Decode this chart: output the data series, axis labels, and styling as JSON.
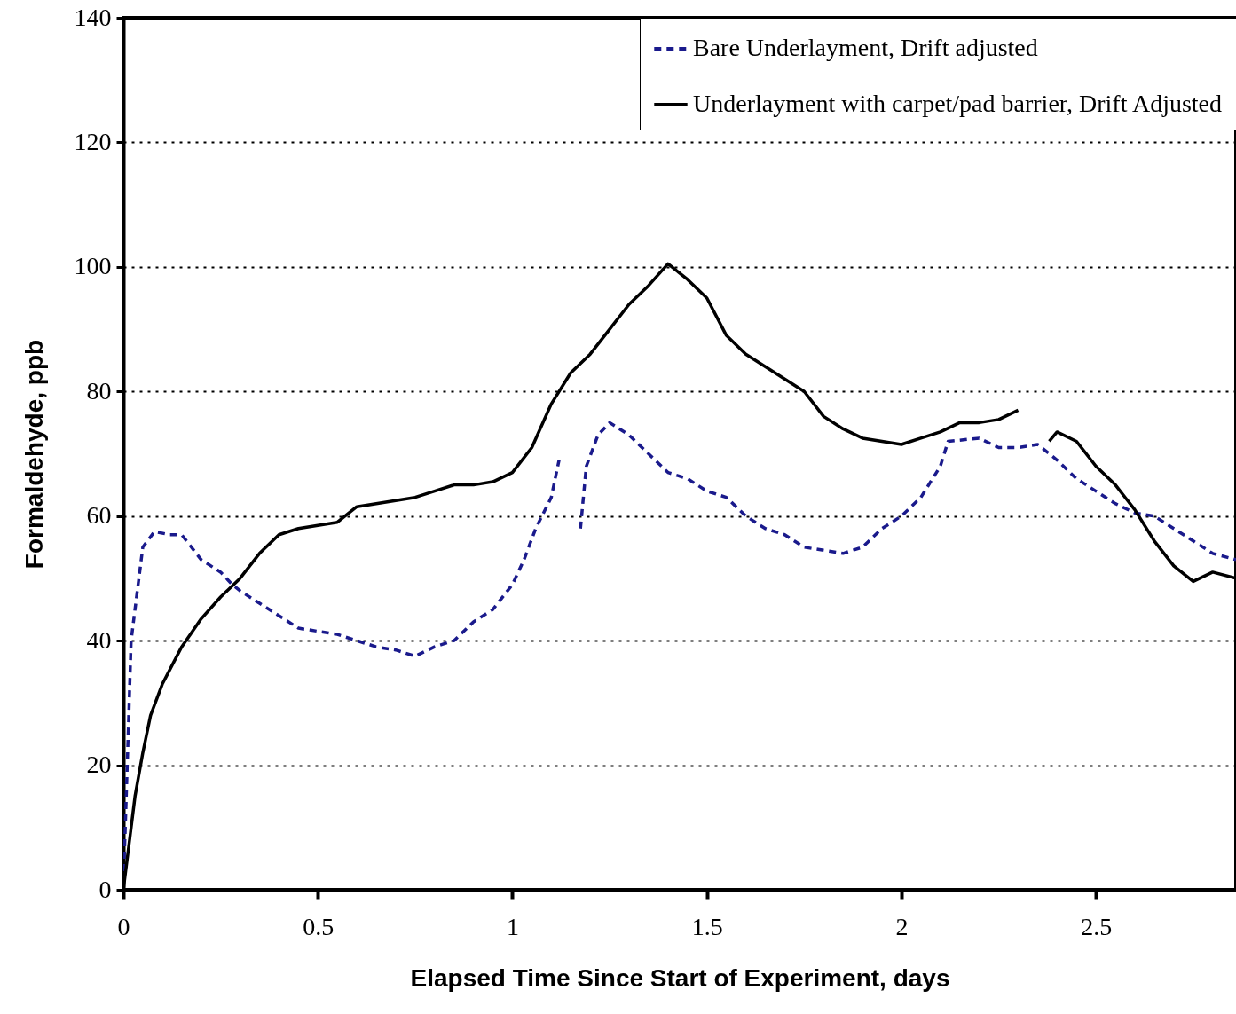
{
  "chart_data": {
    "type": "line",
    "xlabel": "Elapsed Time Since Start of Experiment, days",
    "ylabel": "Formaldehyde, ppb",
    "xlim": [
      0,
      2.86
    ],
    "xticks": [
      0,
      0.5,
      1,
      1.5,
      2,
      2.5
    ],
    "ylim": [
      0,
      140
    ],
    "yticks": [
      0,
      20,
      40,
      60,
      80,
      100,
      120,
      140
    ],
    "grid": "y",
    "legend": "top right",
    "marker": "none",
    "series": [
      {
        "name": "Bare Underlayment, Drift adjusted",
        "color": "#1a1a8c",
        "line_style": "dashed",
        "x": [
          0,
          0.005,
          0.01,
          0.02,
          0.04,
          0.05,
          0.08,
          0.12,
          0.15,
          0.2,
          0.25,
          0.28,
          0.3,
          0.35,
          0.4,
          0.45,
          0.5,
          0.55,
          0.6,
          0.65,
          0.7,
          0.75,
          0.8,
          0.85,
          0.9,
          0.95,
          1.0,
          1.03,
          1.06,
          1.1,
          1.12,
          1.14,
          1.175,
          1.19,
          1.22,
          1.25,
          1.3,
          1.35,
          1.4,
          1.45,
          1.5,
          1.55,
          1.6,
          1.65,
          1.7,
          1.75,
          1.8,
          1.85,
          1.9,
          1.95,
          2.0,
          2.05,
          2.1,
          2.12,
          2.2,
          2.25,
          2.3,
          2.35,
          2.4,
          2.45,
          2.5,
          2.55,
          2.6,
          2.65,
          2.7,
          2.75,
          2.8,
          2.86
        ],
        "values": [
          1,
          10,
          20,
          40,
          50,
          55,
          57.5,
          57,
          57,
          53,
          51,
          49,
          48,
          46,
          44,
          42,
          41.5,
          41,
          40,
          39,
          38.5,
          37.5,
          39,
          40,
          43,
          45,
          49,
          53,
          58,
          63,
          69,
          null,
          58,
          68,
          73,
          75,
          73,
          70,
          67,
          66,
          64,
          63,
          60,
          58,
          57,
          55,
          54.5,
          54,
          55,
          58,
          60,
          63,
          68,
          72,
          72.5,
          71,
          71,
          71.5,
          69,
          66,
          64,
          62,
          60.5,
          60,
          58,
          56,
          54,
          53
        ]
      },
      {
        "name": "Underlayment with carpet/pad barrier, Drift Adjusted",
        "color": "#000000",
        "line_style": "solid",
        "x": [
          0,
          0.01,
          0.03,
          0.05,
          0.07,
          0.1,
          0.15,
          0.2,
          0.25,
          0.3,
          0.35,
          0.4,
          0.45,
          0.5,
          0.55,
          0.6,
          0.65,
          0.7,
          0.75,
          0.8,
          0.85,
          0.9,
          0.95,
          1.0,
          1.05,
          1.1,
          1.15,
          1.2,
          1.25,
          1.3,
          1.35,
          1.4,
          1.45,
          1.5,
          1.55,
          1.6,
          1.65,
          1.7,
          1.75,
          1.8,
          1.85,
          1.9,
          1.95,
          2.0,
          2.05,
          2.1,
          2.15,
          2.2,
          2.25,
          2.3,
          2.35,
          2.38,
          2.4,
          2.45,
          2.5,
          2.55,
          2.6,
          2.65,
          2.7,
          2.75,
          2.8,
          2.86
        ],
        "values": [
          0,
          5,
          15,
          22,
          28,
          33,
          39,
          43.5,
          47,
          50,
          54,
          57,
          58,
          58.5,
          59,
          61.5,
          62,
          62.5,
          63,
          64,
          65,
          65,
          65.5,
          67,
          71,
          78,
          83,
          86,
          90,
          94,
          97,
          100.5,
          98,
          95,
          89,
          86,
          84,
          82,
          80,
          76,
          74,
          72.5,
          72,
          71.5,
          72.5,
          73.5,
          75,
          75,
          75.5,
          77,
          null,
          72,
          73.5,
          72,
          68,
          65,
          61,
          56,
          52,
          49.5,
          51,
          50
        ]
      }
    ]
  }
}
